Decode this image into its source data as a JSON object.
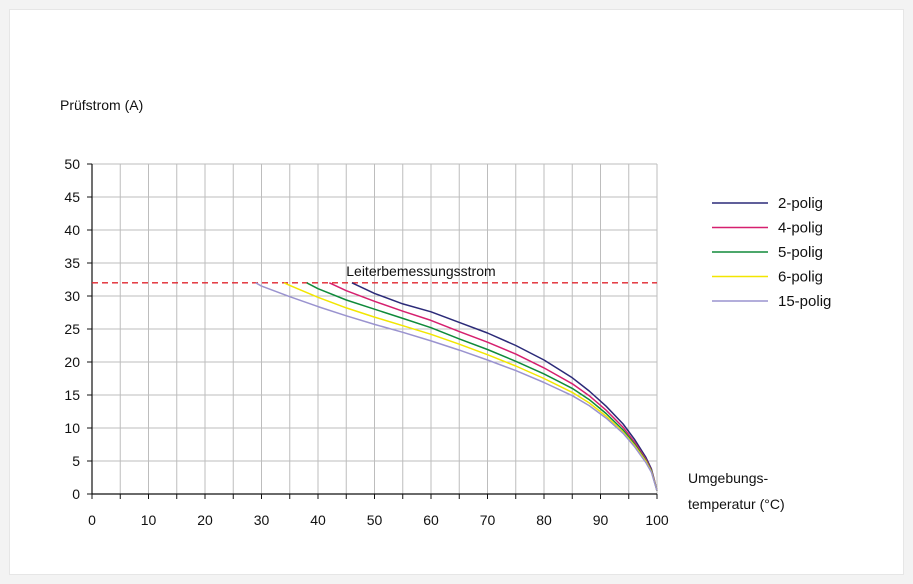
{
  "chart_data": {
    "type": "line",
    "ylabel": "Prüfstrom (A)",
    "xlabel_line1": "Umgebungs-",
    "xlabel_line2": "temperatur (°C)",
    "xlim": [
      0,
      100
    ],
    "ylim": [
      0,
      50
    ],
    "x_ticks": [
      0,
      10,
      20,
      30,
      40,
      50,
      60,
      70,
      80,
      90,
      100
    ],
    "y_ticks": [
      0,
      5,
      10,
      15,
      20,
      25,
      30,
      35,
      40,
      45,
      50
    ],
    "grid": true,
    "legend_position": "right",
    "reference_line": {
      "label": "Leiterbemessungsstrom",
      "y": 32,
      "color": "#e0262f",
      "style": "dashed"
    },
    "series": [
      {
        "name": "2-polig",
        "color": "#2b2a78",
        "points": [
          [
            46,
            32
          ],
          [
            50,
            30.4
          ],
          [
            55,
            28.8
          ],
          [
            60,
            27.6
          ],
          [
            65,
            26
          ],
          [
            70,
            24.4
          ],
          [
            75,
            22.5
          ],
          [
            80,
            20.3
          ],
          [
            85,
            17.6
          ],
          [
            88,
            15.6
          ],
          [
            91,
            13.3
          ],
          [
            94,
            10.6
          ],
          [
            96,
            8.3
          ],
          [
            98,
            5.6
          ],
          [
            99,
            3.8
          ],
          [
            99.5,
            2.2
          ],
          [
            100,
            0.5
          ]
        ]
      },
      {
        "name": "4-polig",
        "color": "#d6206f",
        "points": [
          [
            42,
            32
          ],
          [
            45,
            30.8
          ],
          [
            50,
            29.2
          ],
          [
            55,
            27.7
          ],
          [
            60,
            26.3
          ],
          [
            65,
            24.6
          ],
          [
            70,
            23
          ],
          [
            75,
            21.2
          ],
          [
            80,
            19.1
          ],
          [
            85,
            16.7
          ],
          [
            88,
            14.9
          ],
          [
            91,
            12.7
          ],
          [
            94,
            10.1
          ],
          [
            96,
            7.9
          ],
          [
            98,
            5.3
          ],
          [
            99,
            3.6
          ],
          [
            99.5,
            2.1
          ],
          [
            100,
            0.5
          ]
        ]
      },
      {
        "name": "5-polig",
        "color": "#108a3a",
        "points": [
          [
            38,
            32
          ],
          [
            40,
            31.1
          ],
          [
            45,
            29.4
          ],
          [
            50,
            28
          ],
          [
            55,
            26.6
          ],
          [
            60,
            25.2
          ],
          [
            65,
            23.5
          ],
          [
            70,
            21.9
          ],
          [
            75,
            20.1
          ],
          [
            80,
            18.2
          ],
          [
            85,
            16
          ],
          [
            88,
            14.3
          ],
          [
            91,
            12.2
          ],
          [
            94,
            9.7
          ],
          [
            96,
            7.6
          ],
          [
            98,
            5.1
          ],
          [
            99,
            3.5
          ],
          [
            99.5,
            2
          ],
          [
            100,
            0.5
          ]
        ]
      },
      {
        "name": "6-polig",
        "color": "#f2e600",
        "points": [
          [
            34,
            32
          ],
          [
            35,
            31.6
          ],
          [
            40,
            29.8
          ],
          [
            45,
            28.2
          ],
          [
            50,
            26.8
          ],
          [
            55,
            25.5
          ],
          [
            60,
            24.2
          ],
          [
            65,
            22.7
          ],
          [
            70,
            21.1
          ],
          [
            75,
            19.4
          ],
          [
            80,
            17.5
          ],
          [
            85,
            15.4
          ],
          [
            88,
            13.8
          ],
          [
            91,
            11.8
          ],
          [
            94,
            9.4
          ],
          [
            96,
            7.4
          ],
          [
            98,
            5
          ],
          [
            99,
            3.4
          ],
          [
            99.5,
            2
          ],
          [
            100,
            0.5
          ]
        ]
      },
      {
        "name": "15-polig",
        "color": "#9a93cf",
        "points": [
          [
            29,
            32
          ],
          [
            30,
            31.5
          ],
          [
            35,
            29.9
          ],
          [
            40,
            28.4
          ],
          [
            45,
            27
          ],
          [
            50,
            25.7
          ],
          [
            55,
            24.5
          ],
          [
            60,
            23.2
          ],
          [
            65,
            21.8
          ],
          [
            70,
            20.3
          ],
          [
            75,
            18.7
          ],
          [
            80,
            16.9
          ],
          [
            85,
            14.9
          ],
          [
            88,
            13.4
          ],
          [
            91,
            11.5
          ],
          [
            94,
            9.2
          ],
          [
            96,
            7.2
          ],
          [
            98,
            4.8
          ],
          [
            99,
            3.3
          ],
          [
            99.5,
            1.9
          ],
          [
            100,
            0.5
          ]
        ]
      }
    ]
  }
}
